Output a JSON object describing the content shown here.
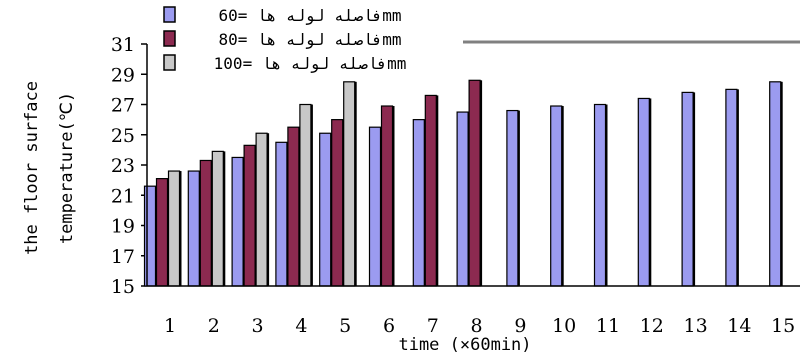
{
  "chart_data": {
    "type": "bar",
    "xlabel": "time (×60min)",
    "ylabel": [
      "the floor surface",
      "temperature(℃)"
    ],
    "ylim": [
      15,
      31
    ],
    "yticks": [
      15,
      17,
      19,
      21,
      23,
      25,
      27,
      29,
      31
    ],
    "categories": [
      "1",
      "2",
      "3",
      "4",
      "5",
      "6",
      "7",
      "8",
      "9",
      "10",
      "11",
      "12",
      "13",
      "14",
      "15"
    ],
    "series": [
      {
        "name": "فاصله لوله ها =60mm",
        "color": "#9b9bf0",
        "values": [
          21.6,
          22.6,
          23.5,
          24.5,
          25.1,
          25.5,
          26.0,
          26.5,
          26.6,
          26.9,
          27.0,
          27.4,
          27.8,
          28.0,
          28.5
        ]
      },
      {
        "name": "فاصله لوله ها =80mm",
        "color": "#8c2a50",
        "values": [
          22.1,
          23.3,
          24.3,
          25.5,
          26.0,
          26.9,
          27.6,
          28.6,
          null,
          null,
          null,
          null,
          null,
          null,
          null
        ]
      },
      {
        "name": "فاصله لوله ها =100mm",
        "color": "#c8c8c8",
        "values": [
          22.6,
          23.9,
          25.1,
          27.0,
          28.5,
          null,
          null,
          null,
          null,
          null,
          null,
          null,
          null,
          null,
          null
        ]
      }
    ],
    "legend_position": "top-left",
    "grid": false
  }
}
